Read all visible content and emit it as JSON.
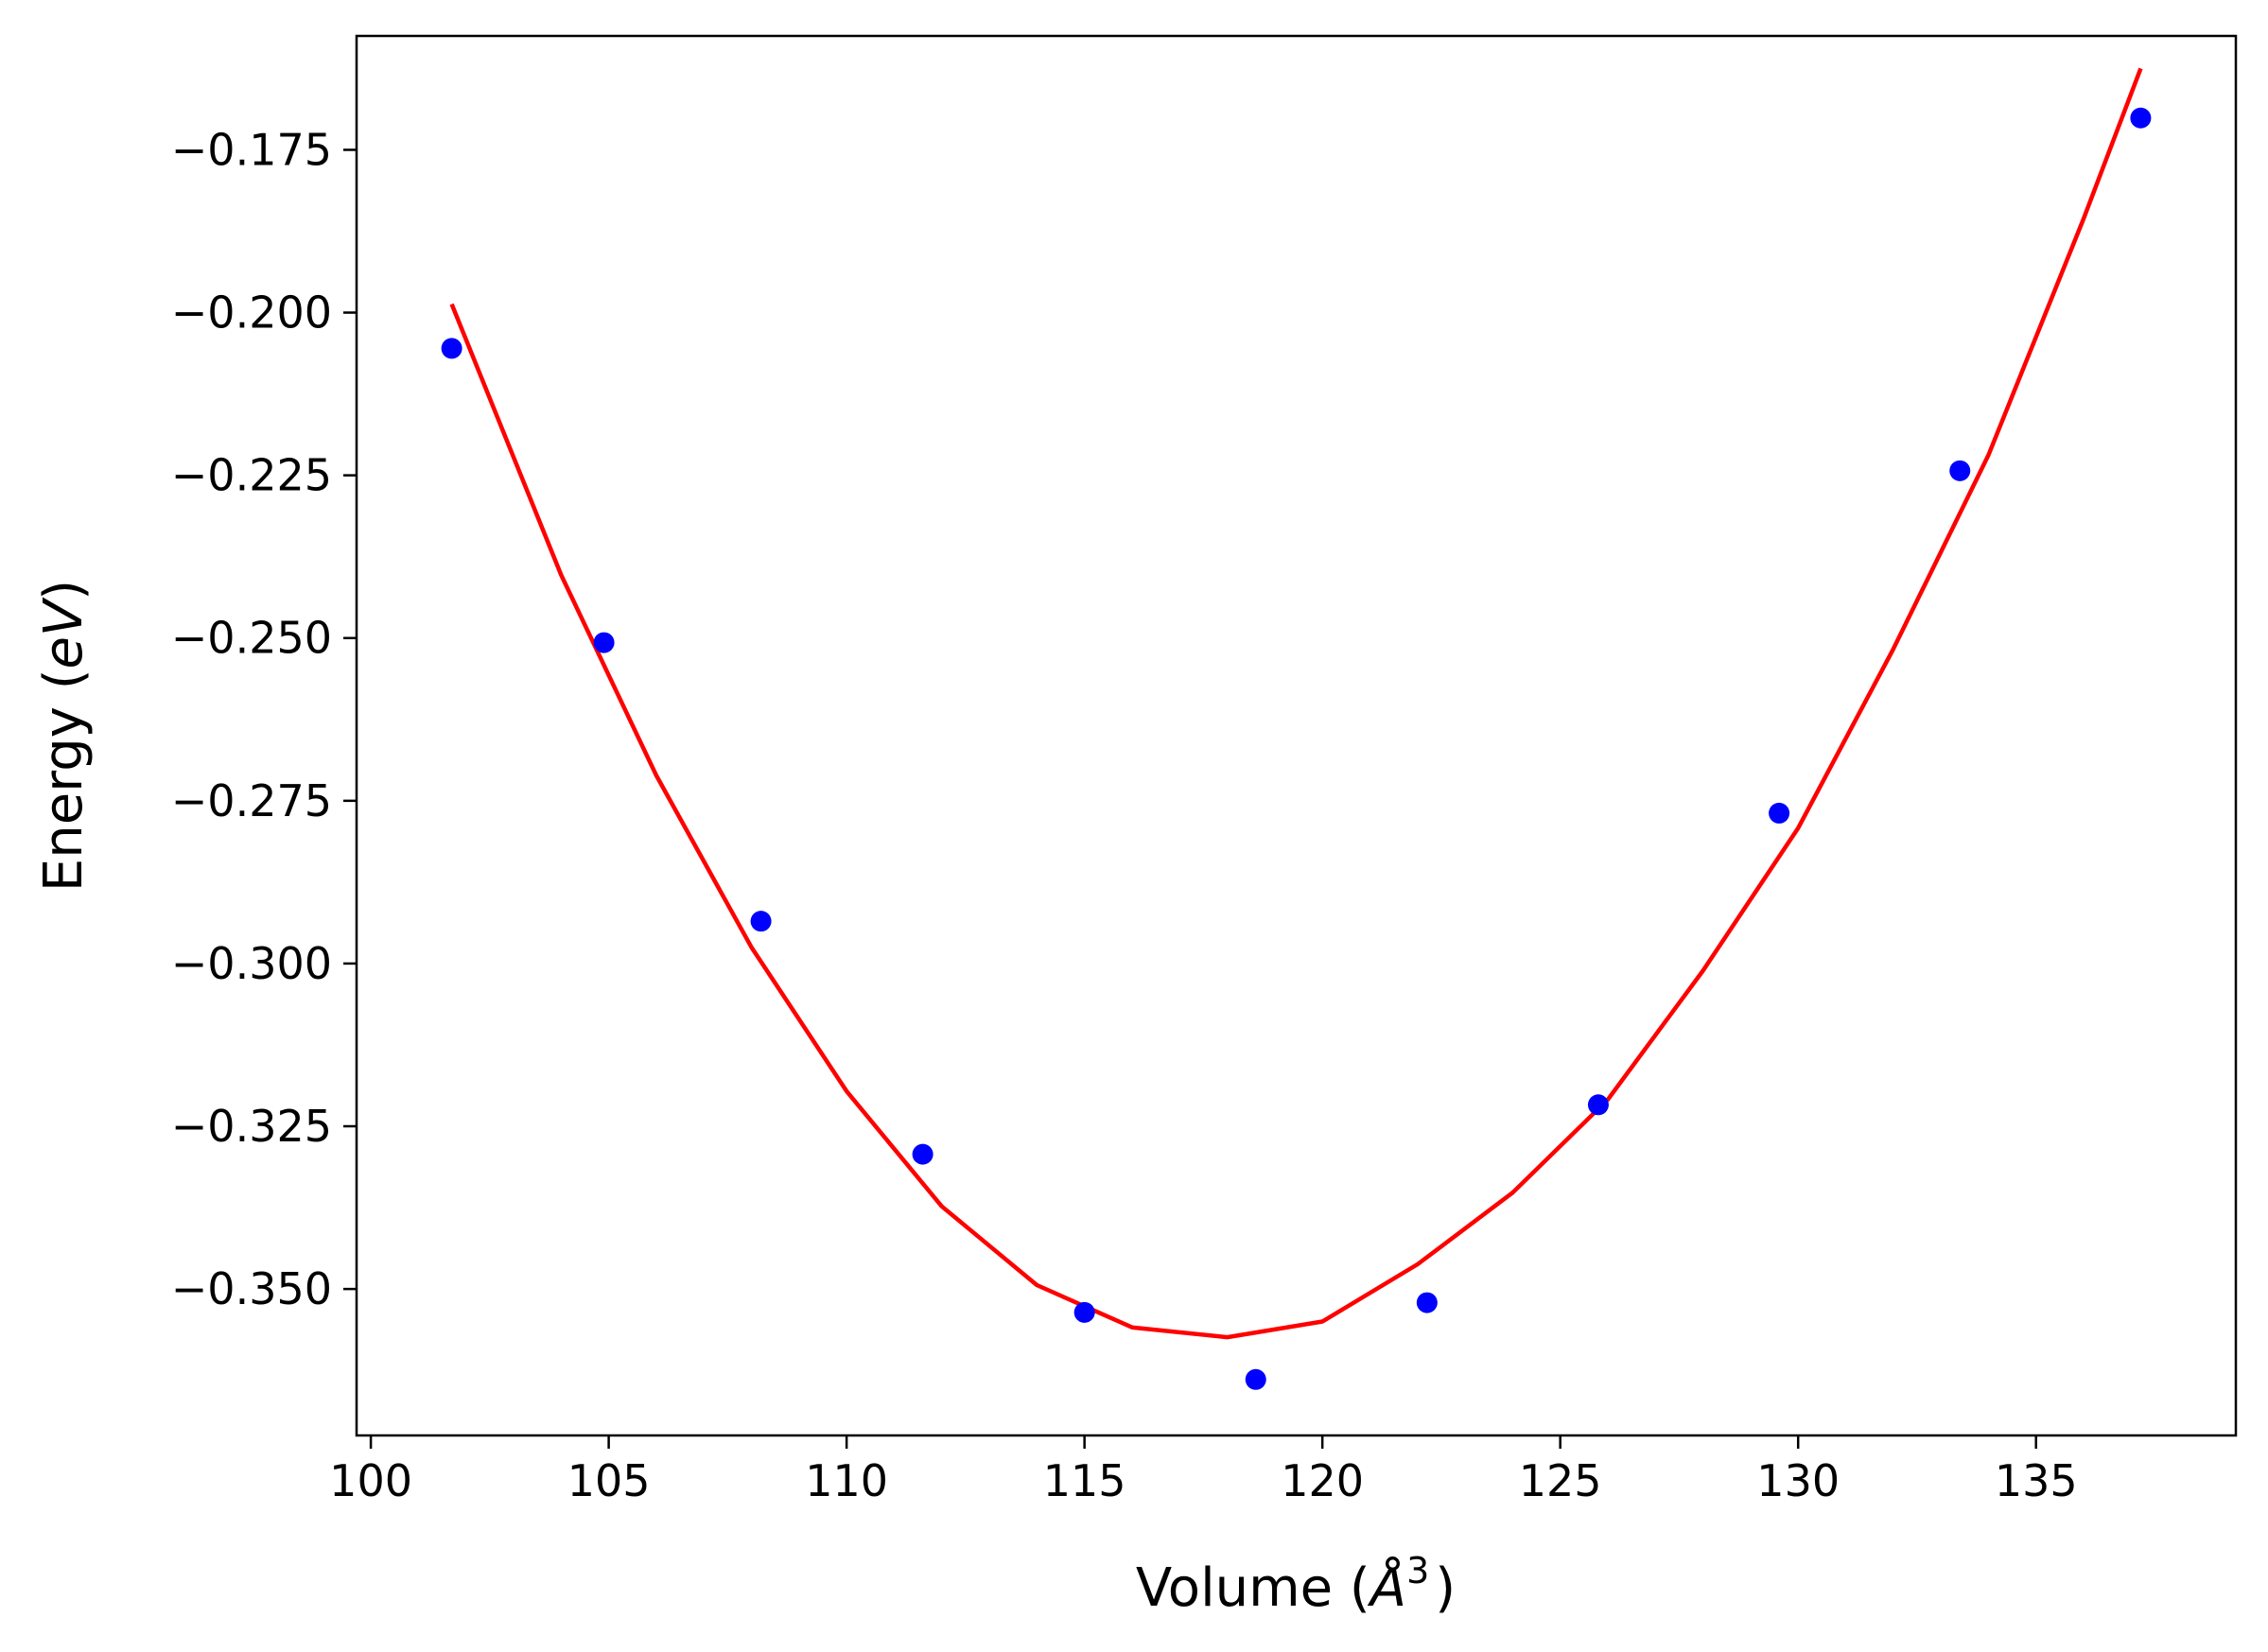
{
  "chart_data": {
    "type": "scatter",
    "xlabel": {
      "prefix": "Volume (",
      "unit": "Å",
      "power": "3",
      "suffix": ")"
    },
    "ylabel": {
      "prefix": "Energy (",
      "unit": "eV",
      "suffix": ")"
    },
    "xlim": [
      99.7,
      139.2
    ],
    "ylim": [
      -0.3725,
      -0.1575
    ],
    "x_ticks": [
      100,
      105,
      110,
      115,
      120,
      125,
      130,
      135
    ],
    "x_tick_labels": [
      "100",
      "105",
      "110",
      "115",
      "120",
      "125",
      "130",
      "135"
    ],
    "y_ticks": [
      -0.175,
      -0.2,
      -0.225,
      -0.25,
      -0.275,
      -0.3,
      -0.325,
      -0.35
    ],
    "y_tick_labels": [
      "−0.175",
      "−0.200",
      "−0.225",
      "−0.250",
      "−0.275",
      "−0.300",
      "−0.325",
      "−0.350"
    ],
    "grid": false,
    "series": [
      {
        "kind": "points",
        "color": "#0000ff",
        "x": [
          101.7,
          104.9,
          108.2,
          111.6,
          115.0,
          118.6,
          122.2,
          125.8,
          129.6,
          133.4,
          137.2
        ],
        "y": [
          -0.2055,
          -0.2507,
          -0.2935,
          -0.3293,
          -0.3536,
          -0.3639,
          -0.3521,
          -0.3217,
          -0.2769,
          -0.2243,
          -0.1701
        ]
      },
      {
        "kind": "fit-curve",
        "color": "#ff0000",
        "x": [
          101.7,
          104.0,
          106.0,
          108.0,
          110.0,
          112.0,
          114.0,
          116.0,
          118.0,
          120.0,
          122.0,
          124.0,
          126.0,
          128.0,
          130.0,
          132.0,
          134.0,
          136.0,
          137.2
        ],
        "y": [
          -0.1987,
          -0.2403,
          -0.2711,
          -0.2975,
          -0.3196,
          -0.3373,
          -0.3494,
          -0.3559,
          -0.3574,
          -0.355,
          -0.3462,
          -0.3352,
          -0.3209,
          -0.3011,
          -0.2792,
          -0.2517,
          -0.2219,
          -0.1856,
          -0.1625
        ]
      }
    ]
  }
}
